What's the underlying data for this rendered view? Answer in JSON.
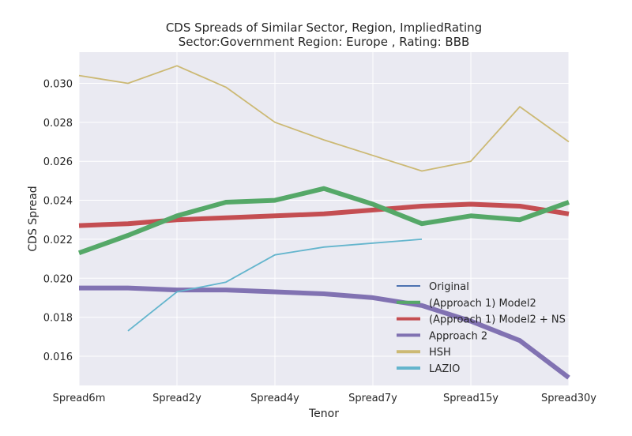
{
  "chart_data": {
    "type": "line",
    "title": "CDS Spreads of Similar Sector, Region, ImpliedRating",
    "subtitle": "Sector:Government Region: Europe , Rating: BBB",
    "xlabel": "Tenor",
    "ylabel": "CDS Spread",
    "x_ticks": [
      "Spread6m",
      "Spread2y",
      "Spread4y",
      "Spread7y",
      "Spread15y",
      "Spread30y"
    ],
    "y_ticks": [
      "0.016",
      "0.018",
      "0.020",
      "0.022",
      "0.024",
      "0.026",
      "0.028",
      "0.030"
    ],
    "ylim": [
      0.0145,
      0.0316
    ],
    "grid": true,
    "legend_position": "lower-right",
    "series": [
      {
        "name": "Original",
        "color": "#4c72b0",
        "values": []
      },
      {
        "name": "(Approach 1) Model2",
        "color": "#55a868",
        "values": [
          0.0213,
          0.0222,
          0.0232,
          0.0239,
          0.024,
          0.0246,
          0.0238,
          0.0228,
          0.0232,
          0.023,
          0.0239
        ]
      },
      {
        "name": "(Approach 1) Model2 + NS",
        "color": "#c44e52",
        "values": [
          0.0227,
          0.0228,
          0.023,
          0.0231,
          0.0232,
          0.0233,
          0.0235,
          0.0237,
          0.0238,
          0.0237,
          0.0233
        ]
      },
      {
        "name": "Approach 2",
        "color": "#8172b2",
        "values": [
          0.0195,
          0.0195,
          0.0194,
          0.0194,
          0.0193,
          0.0192,
          0.019,
          0.0186,
          0.0178,
          0.0168,
          0.0149
        ]
      },
      {
        "name": "HSH",
        "color": "#ccb974",
        "values": [
          0.0304,
          0.03,
          0.0309,
          0.0298,
          0.028,
          0.0271,
          0.0263,
          0.0255,
          0.026,
          0.0288,
          0.027
        ]
      },
      {
        "name": "LAZIO",
        "color": "#64b5cd",
        "values": [
          null,
          0.0173,
          0.0193,
          0.0198,
          0.0212,
          0.0216,
          0.0218,
          0.022,
          null,
          null,
          null
        ]
      }
    ]
  }
}
